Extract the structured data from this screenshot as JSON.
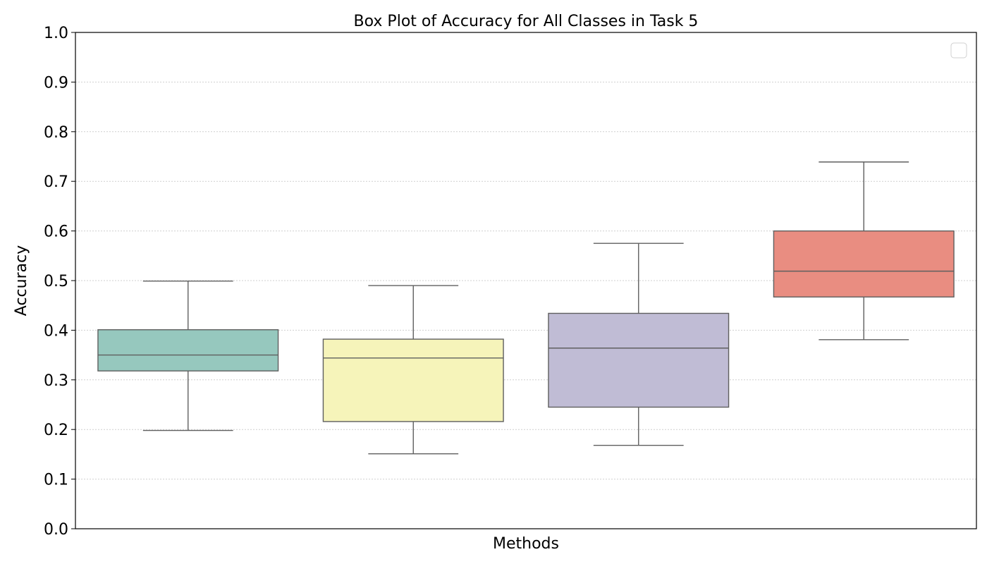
{
  "chart_data": {
    "type": "box",
    "title": "Box Plot of Accuracy for All Classes in Task 5",
    "xlabel": "Methods",
    "ylabel": "Accuracy",
    "ylim": [
      0.0,
      1.0
    ],
    "yticks": [
      "0.0",
      "0.1",
      "0.2",
      "0.3",
      "0.4",
      "0.5",
      "0.6",
      "0.7",
      "0.8",
      "0.9",
      "1.0"
    ],
    "grid": "horizontal, dotted",
    "legend": {
      "placement": "top-right",
      "entries": []
    },
    "series": [
      {
        "color": "#96c8be",
        "whisker_low": 0.198,
        "q1": 0.318,
        "median": 0.35,
        "q3": 0.401,
        "whisker_high": 0.499
      },
      {
        "color": "#f6f4ba",
        "whisker_low": 0.151,
        "q1": 0.216,
        "median": 0.344,
        "q3": 0.382,
        "whisker_high": 0.49
      },
      {
        "color": "#c0bcd5",
        "whisker_low": 0.168,
        "q1": 0.245,
        "median": 0.364,
        "q3": 0.434,
        "whisker_high": 0.575
      },
      {
        "color": "#e98d81",
        "whisker_low": 0.381,
        "q1": 0.467,
        "median": 0.519,
        "q3": 0.6,
        "whisker_high": 0.739
      }
    ]
  }
}
